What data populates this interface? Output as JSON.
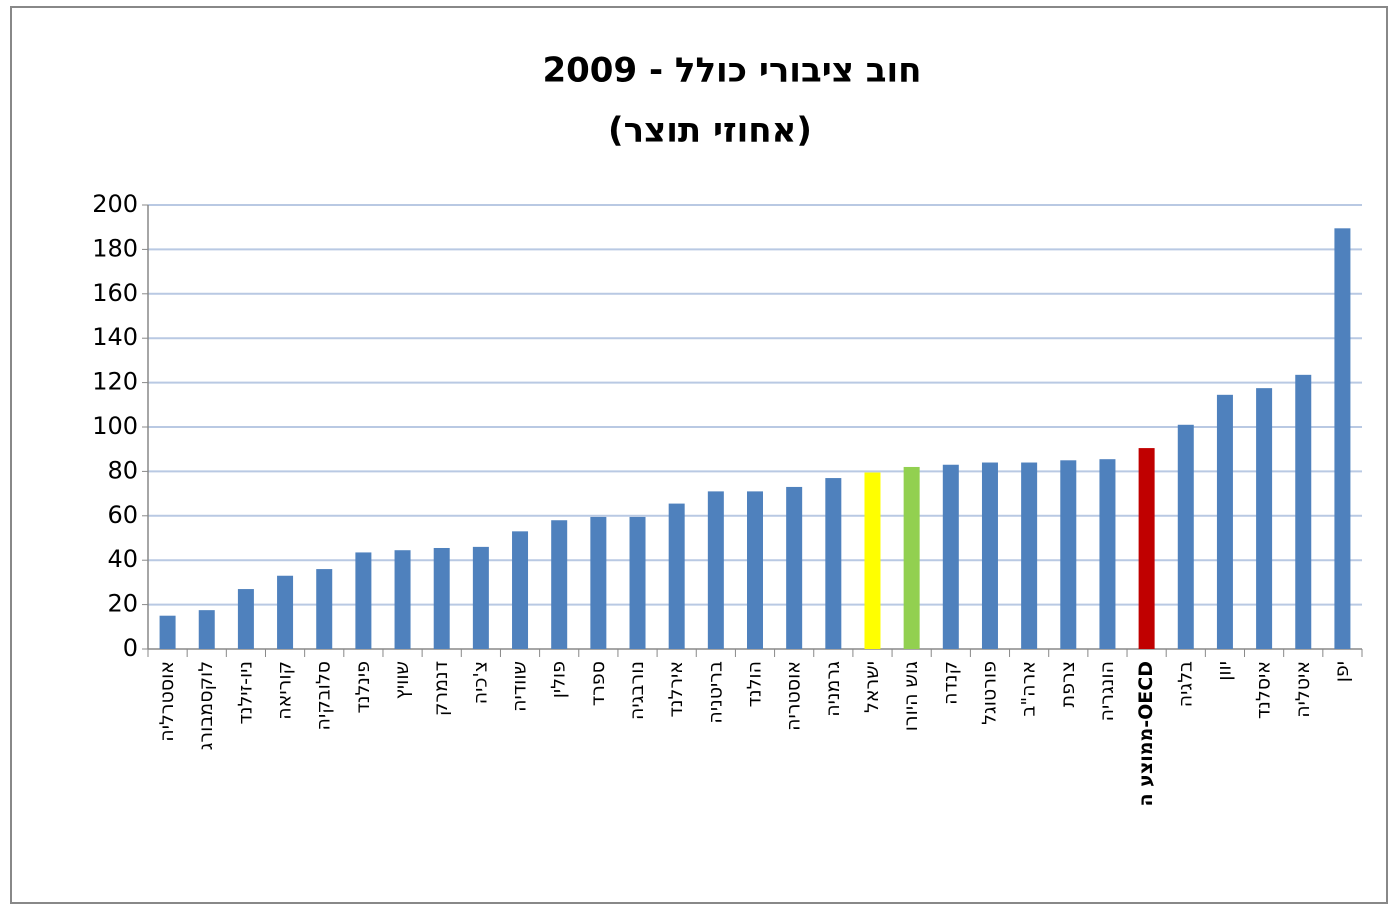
{
  "chart_data": {
    "type": "bar",
    "title": "חוב ציבורי כולל - 2009",
    "subtitle": "(אחוזי תוצר)",
    "categories": [
      "אוסטרליה",
      "לוקסמבורג",
      "ניו-זילנד",
      "קוריאה",
      "סלובקיה",
      "פינלנד",
      "שוויץ",
      "דנמרק",
      "צ'כיה",
      "שוודיה",
      "פולין",
      "ספרד",
      "נורבגיה",
      "אירלנד",
      "בריטניה",
      "הולנד",
      "אוסטריה",
      "גרמניה",
      "ישראל",
      "גוש היורו",
      "קנדה",
      "פורטוגל",
      "ארה\"ב",
      "צרפת",
      "הונגריה",
      "ממוצע ה-OECD",
      "בלגיה",
      "יוון",
      "איסלנד",
      "איטליה",
      "יפן"
    ],
    "values": [
      15,
      17.5,
      27,
      33,
      36,
      43.5,
      44.5,
      45.5,
      46,
      53,
      58,
      59.5,
      59.5,
      65.5,
      71,
      71,
      73,
      77,
      79.5,
      82,
      83,
      84,
      84,
      85,
      85.5,
      90.5,
      101,
      114.5,
      117.5,
      123.5,
      189.5
    ],
    "colors": [
      "#4f81bd",
      "#4f81bd",
      "#4f81bd",
      "#4f81bd",
      "#4f81bd",
      "#4f81bd",
      "#4f81bd",
      "#4f81bd",
      "#4f81bd",
      "#4f81bd",
      "#4f81bd",
      "#4f81bd",
      "#4f81bd",
      "#4f81bd",
      "#4f81bd",
      "#4f81bd",
      "#4f81bd",
      "#4f81bd",
      "#ffff00",
      "#92d050",
      "#4f81bd",
      "#4f81bd",
      "#4f81bd",
      "#4f81bd",
      "#4f81bd",
      "#c00000",
      "#4f81bd",
      "#4f81bd",
      "#4f81bd",
      "#4f81bd",
      "#4f81bd"
    ],
    "ylim": [
      0,
      200
    ],
    "yticks": [
      0,
      20,
      40,
      60,
      80,
      100,
      120,
      140,
      160,
      180,
      200
    ],
    "grid": true
  }
}
